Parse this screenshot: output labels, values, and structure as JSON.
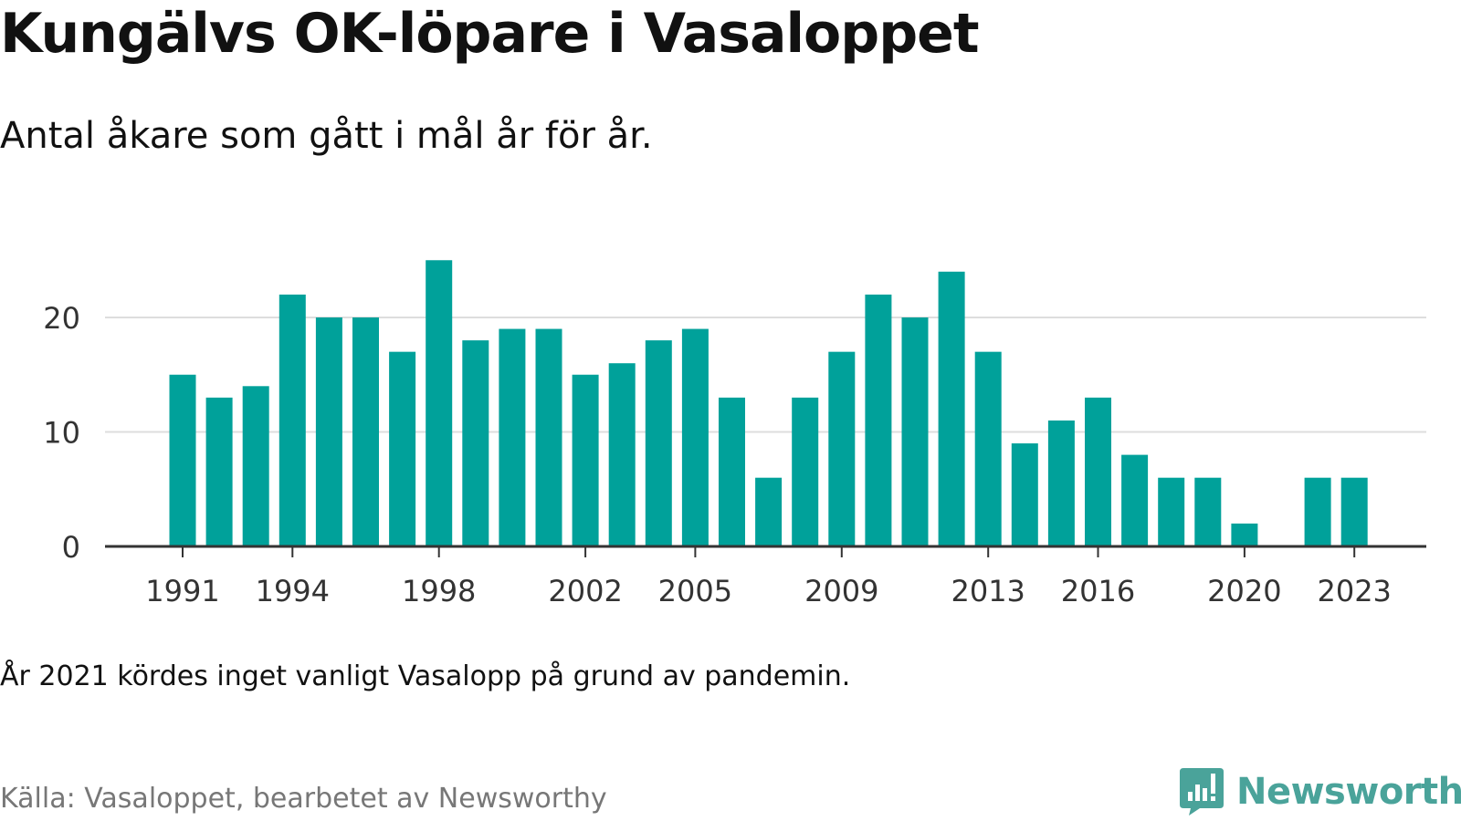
{
  "title": "Kungälvs OK-löpare i Vasaloppet",
  "subtitle": "Antal åkare som gått i mål år för år.",
  "note": "År 2021 kördes inget vanligt Vasalopp på grund av pandemin.",
  "source": "Källa: Vasaloppet, bearbetet av Newsworthy",
  "logo": {
    "text": "Newsworthy",
    "icon": "bar-chart-badge-icon"
  },
  "colors": {
    "bar": "#00a19a",
    "grid": "#dddddd",
    "axis": "#333333",
    "tick_text": "#333333",
    "logo": "#4aa39a"
  },
  "chart_data": {
    "type": "bar",
    "categories": [
      "1991",
      "1992",
      "1993",
      "1994",
      "1995",
      "1996",
      "1997",
      "1998",
      "1999",
      "2000",
      "2001",
      "2002",
      "2003",
      "2004",
      "2005",
      "2006",
      "2007",
      "2008",
      "2009",
      "2010",
      "2011",
      "2012",
      "2013",
      "2014",
      "2015",
      "2016",
      "2017",
      "2018",
      "2019",
      "2020",
      "2021",
      "2022",
      "2023"
    ],
    "values": [
      15,
      13,
      14,
      22,
      20,
      20,
      17,
      25,
      18,
      19,
      19,
      15,
      16,
      18,
      19,
      13,
      6,
      13,
      17,
      22,
      20,
      24,
      17,
      9,
      11,
      13,
      8,
      6,
      6,
      2,
      null,
      6,
      6
    ],
    "x_tick_labels": [
      "1991",
      "1994",
      "1998",
      "2002",
      "2005",
      "2009",
      "2013",
      "2016",
      "2020",
      "2023"
    ],
    "y_ticks": [
      0,
      10,
      20
    ],
    "ylim": [
      0,
      25
    ],
    "grid": true,
    "legend": "none"
  }
}
